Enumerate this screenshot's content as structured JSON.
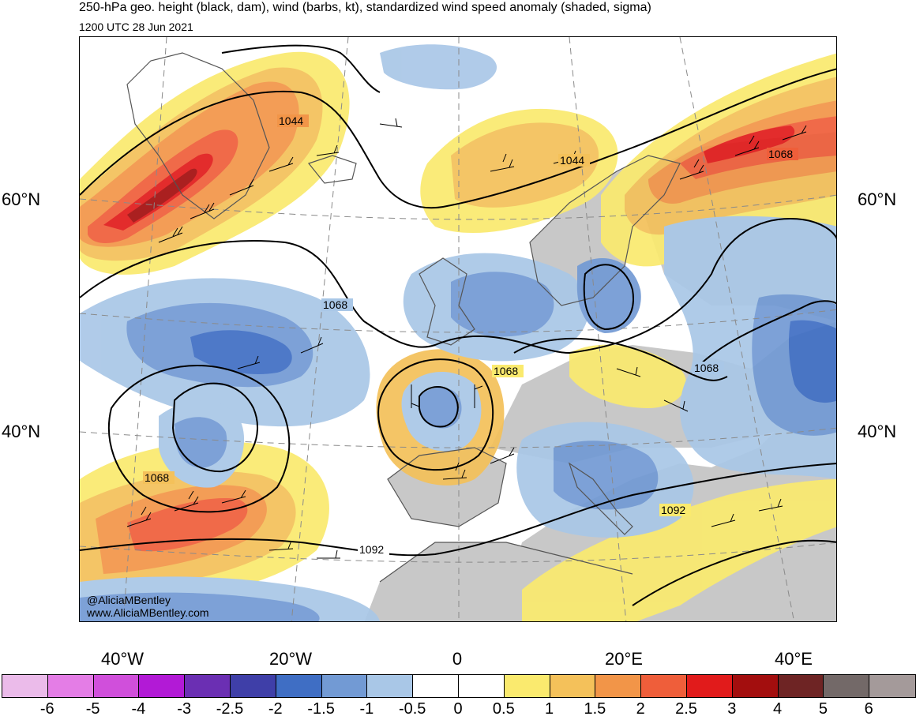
{
  "header": {
    "title": "250-hPa geo. height (black, dam), wind (barbs, kt), standardized wind speed anomaly (shaded, sigma)",
    "valid_time": "1200 UTC 28 Jun 2021"
  },
  "axes": {
    "lat_labels": [
      "60°N",
      "40°N"
    ],
    "lon_labels": [
      "40°W",
      "20°W",
      "0",
      "20°E",
      "40°E"
    ]
  },
  "contour_labels": [
    "1044",
    "1044",
    "1068",
    "1068",
    "1068",
    "1068",
    "1068",
    "1092",
    "1092"
  ],
  "credits": {
    "handle": "@AliciaMBentley",
    "website": "www.AliciaMBentley.com"
  },
  "colorbar": {
    "ticks": [
      "-6",
      "-5",
      "-4",
      "-3",
      "-2.5",
      "-2",
      "-1.5",
      "-1",
      "-0.5",
      "0",
      "0.5",
      "1",
      "1.5",
      "2",
      "2.5",
      "3",
      "4",
      "5",
      "6"
    ],
    "colors": [
      "#ebbbea",
      "#e47de6",
      "#d04fdb",
      "#b21ad6",
      "#6b2fb3",
      "#3f3fa8",
      "#3f6ec4",
      "#729ad4",
      "#a9c7e7",
      "#ffffff",
      "#ffffff",
      "#faea6e",
      "#f4c15a",
      "#f29548",
      "#ef5e3a",
      "#e11b1b",
      "#a30e0e",
      "#6e2424",
      "#736968",
      "#a49a9a"
    ]
  },
  "colors": {
    "land": "#c8c8c8",
    "contour": "#000000",
    "graticule": "#8a8a8a"
  }
}
